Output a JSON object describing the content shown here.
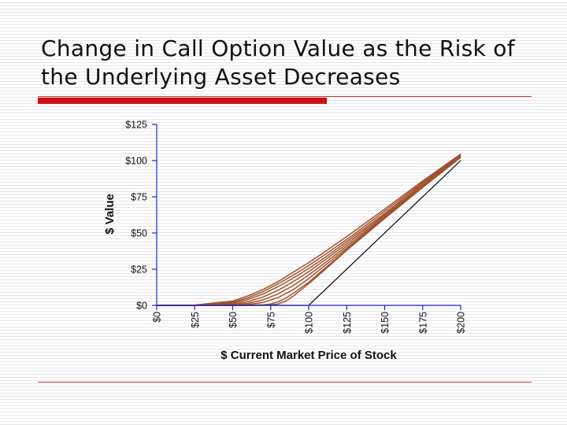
{
  "slide": {
    "title": "Change in Call Option Value as the Risk of the Underlying Asset Decreases"
  },
  "chart_data": {
    "type": "line",
    "title": "",
    "xlabel": "$ Current Market Price of Stock",
    "ylabel": "$ Value",
    "xlim": [
      0,
      200
    ],
    "ylim": [
      0,
      125
    ],
    "x_ticks": [
      0,
      25,
      50,
      75,
      100,
      125,
      150,
      175,
      200
    ],
    "y_ticks": [
      0,
      25,
      50,
      75,
      100,
      125
    ],
    "x_tick_labels": [
      "$0",
      "$25",
      "$50",
      "$75",
      "$100",
      "$125",
      "$150",
      "$175",
      "$200"
    ],
    "y_tick_labels": [
      "$0",
      "$25",
      "$50",
      "$75",
      "$100",
      "$125"
    ],
    "grid": false,
    "legend": "none",
    "colors": {
      "curves": "#a0522d",
      "intrinsic": "#000000",
      "axes": "#2222cc"
    },
    "series": [
      {
        "x": [
          0,
          25,
          50,
          60,
          70,
          80,
          90,
          100,
          110,
          125,
          150,
          175,
          200
        ],
        "values": [
          0,
          0.2,
          3,
          6.5,
          11,
          16.5,
          23,
          29.5,
          36.5,
          47.5,
          66.5,
          86,
          104.5
        ]
      },
      {
        "x": [
          0,
          25,
          50,
          60,
          70,
          80,
          90,
          100,
          110,
          125,
          150,
          175,
          200
        ],
        "values": [
          0,
          0.1,
          2.2,
          5.2,
          9.5,
          15,
          21,
          27.5,
          34.5,
          45.5,
          65,
          85,
          104
        ]
      },
      {
        "x": [
          0,
          25,
          50,
          60,
          70,
          80,
          90,
          100,
          110,
          125,
          150,
          175,
          200
        ],
        "values": [
          0,
          0,
          1.5,
          4,
          7.8,
          13,
          19,
          25.5,
          32.5,
          44,
          63.5,
          84,
          103.5
        ]
      },
      {
        "x": [
          0,
          25,
          50,
          60,
          70,
          80,
          90,
          100,
          110,
          125,
          150,
          175,
          200
        ],
        "values": [
          0,
          0,
          0.8,
          2.6,
          5.8,
          10.5,
          16.5,
          23.3,
          30.8,
          42.5,
          62.5,
          83,
          103
        ]
      },
      {
        "x": [
          0,
          25,
          50,
          60,
          70,
          80,
          90,
          100,
          110,
          125,
          150,
          175,
          200
        ],
        "values": [
          0,
          0,
          0.3,
          1.4,
          3.8,
          8,
          13.8,
          21,
          28.8,
          41,
          61.5,
          82.5,
          102.8
        ]
      },
      {
        "x": [
          0,
          25,
          50,
          60,
          70,
          80,
          90,
          100,
          110,
          125,
          150,
          175,
          200
        ],
        "values": [
          0,
          0,
          0.1,
          0.6,
          2,
          5.5,
          11,
          18.5,
          27,
          39.5,
          60.8,
          82,
          102.5
        ]
      },
      {
        "x": [
          0,
          25,
          50,
          60,
          70,
          75,
          80,
          85,
          90,
          100,
          110,
          125,
          150,
          175,
          200
        ],
        "values": [
          0,
          0,
          0,
          0.1,
          0.4,
          1,
          2.5,
          5,
          8.5,
          16,
          25,
          38.5,
          60.2,
          81.5,
          102.3
        ]
      },
      {
        "x": [
          0,
          50,
          60,
          70,
          75,
          80,
          85,
          90,
          100,
          110,
          125,
          150,
          175,
          200
        ],
        "values": [
          0,
          0,
          0,
          0.1,
          0.3,
          1,
          3,
          6.5,
          15,
          24,
          38,
          60,
          81.5,
          102.2
        ]
      },
      {
        "x": [
          0,
          100,
          200
        ],
        "values": [
          0,
          0,
          100
        ],
        "role": "intrinsic"
      }
    ]
  }
}
